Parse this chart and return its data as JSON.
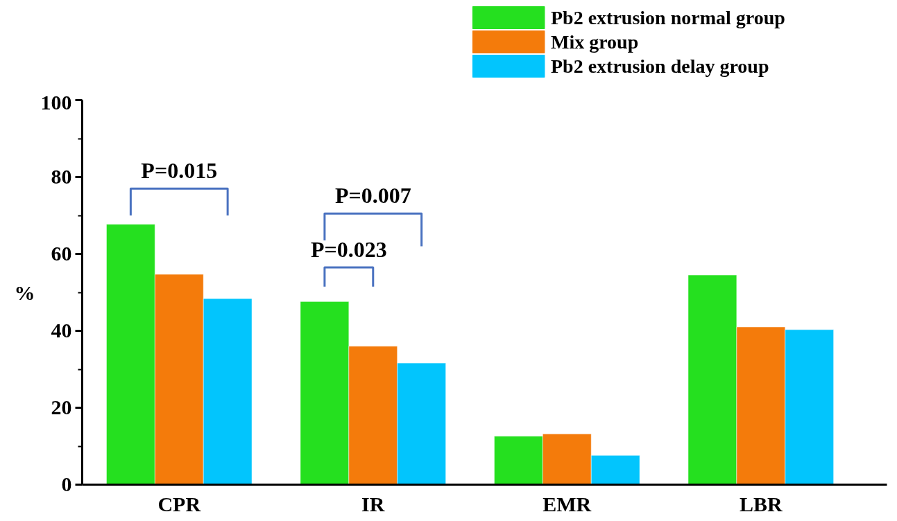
{
  "chart_data": {
    "type": "bar",
    "ylabel": "%",
    "categories": [
      "CPR",
      "IR",
      "EMR",
      "LBR"
    ],
    "series": [
      {
        "name": "Pb2 extrusion normal group",
        "color": "#25e01f",
        "values": [
          67.7,
          47.6,
          12.6,
          54.5
        ]
      },
      {
        "name": "Mix group",
        "color": "#f47b0b",
        "values": [
          54.7,
          36.0,
          13.2,
          41.0
        ]
      },
      {
        "name": "Pb2 extrusion delay group",
        "color": "#02c5fd",
        "values": [
          48.4,
          31.6,
          7.6,
          40.3
        ]
      }
    ],
    "ylim": [
      0,
      100
    ],
    "yticks": [
      0,
      {
        "value": 10,
        "label": null
      },
      20,
      {
        "value": 30,
        "label": null
      },
      40,
      {
        "value": 50,
        "label": null
      },
      60,
      {
        "value": 70,
        "label": null
      },
      80,
      {
        "value": 90,
        "label": null
      },
      100
    ],
    "annotations": [
      "P=0.015",
      "P=0.007",
      "P=0.023"
    ],
    "grid": false,
    "legend": "top right"
  }
}
